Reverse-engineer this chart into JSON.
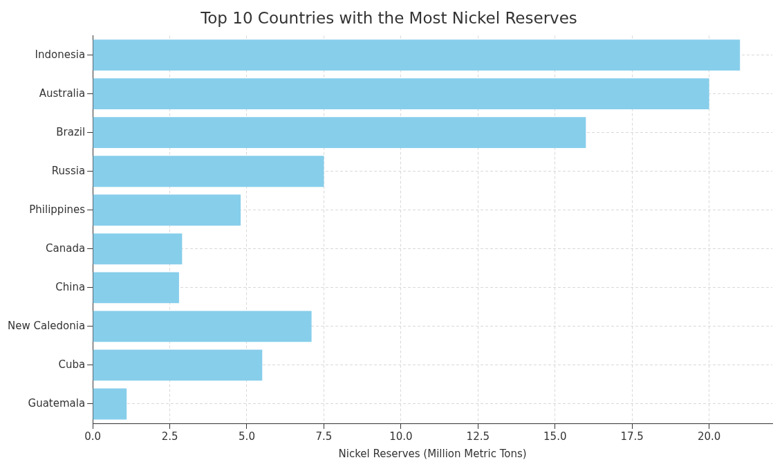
{
  "chart_data": {
    "type": "bar",
    "orientation": "horizontal",
    "title": "Top 10 Countries with the Most Nickel Reserves",
    "xlabel": "Nickel Reserves (Million Metric Tons)",
    "categories": [
      "Indonesia",
      "Australia",
      "Brazil",
      "Russia",
      "Philippines",
      "Canada",
      "China",
      "New Caledonia",
      "Cuba",
      "Guatemala"
    ],
    "values": [
      21,
      20,
      16,
      7.5,
      4.8,
      2.9,
      2.8,
      7.1,
      5.5,
      1.1
    ],
    "color": "#87ceeb",
    "xlim": [
      0,
      22.05
    ],
    "xticks": [
      {
        "value": 0,
        "label": "0.0"
      },
      {
        "value": 2.5,
        "label": "2.5"
      },
      {
        "value": 5,
        "label": "5.0"
      },
      {
        "value": 7.5,
        "label": "7.5"
      },
      {
        "value": 10,
        "label": "10.0"
      },
      {
        "value": 12.5,
        "label": "12.5"
      },
      {
        "value": 15,
        "label": "15.0"
      },
      {
        "value": 17.5,
        "label": "17.5"
      },
      {
        "value": 20,
        "label": "20.0"
      }
    ],
    "grid": true,
    "line_style": "dashed"
  }
}
